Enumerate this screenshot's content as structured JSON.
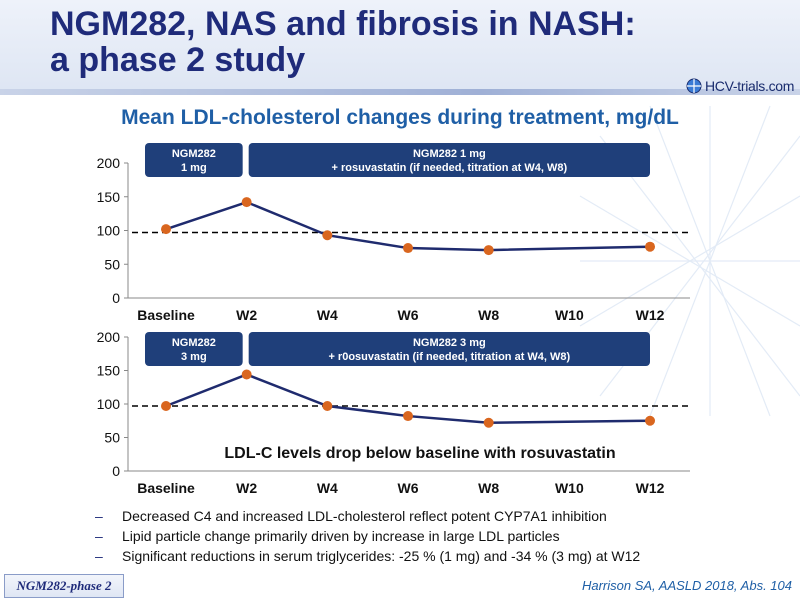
{
  "slide": {
    "title_line1": "NGM282, NAS and fibrosis in NASH:",
    "title_line2": "a phase 2 study",
    "logo_text": "HCV-trials.com",
    "subtitle": "Mean LDL-cholesterol changes during treatment, mg/dL",
    "annotation": "LDL-C levels drop below baseline with rosuvastatin",
    "bullets": [
      "Decreased C4 and increased LDL-cholesterol reflect potent CYP7A1 inhibition",
      "Lipid particle change primarily driven by increase in large LDL particles",
      "Significant reductions in serum triglycerides: -25 % (1 mg) and -34 % (3 mg) at W12"
    ],
    "footer_tag": "NGM282-phase 2",
    "citation": "Harrison SA, AASLD 2018, Abs. 104",
    "colors": {
      "line": "#1f2b6e",
      "marker": "#d9661f",
      "box": "#1f3f7a",
      "title": "#1f2b7a",
      "subtitle": "#1f5fa6"
    }
  },
  "chart_data": [
    {
      "type": "line",
      "categories": [
        "Baseline",
        "W2",
        "W4",
        "W6",
        "W8",
        "W10",
        "W12"
      ],
      "series": [
        {
          "values": [
            102,
            142,
            93,
            74,
            71,
            null,
            76
          ]
        }
      ],
      "ylim": [
        0,
        200
      ],
      "yticks": [
        0,
        50,
        100,
        150,
        200
      ],
      "reference_line": 97,
      "phase_boxes": [
        {
          "line1": "NGM282",
          "line2": "1 mg",
          "from": "Baseline",
          "to": "W2"
        },
        {
          "line1": "NGM282 1 mg",
          "line2": "+ rosuvastatin (if needed, titration at W4, W8)",
          "from": "W2",
          "to": "W12"
        }
      ]
    },
    {
      "type": "line",
      "categories": [
        "Baseline",
        "W2",
        "W4",
        "W6",
        "W8",
        "W10",
        "W12"
      ],
      "series": [
        {
          "values": [
            97,
            144,
            97,
            82,
            72,
            null,
            75
          ]
        }
      ],
      "ylim": [
        0,
        200
      ],
      "yticks": [
        0,
        50,
        100,
        150,
        200
      ],
      "reference_line": 97,
      "phase_boxes": [
        {
          "line1": "NGM282",
          "line2": "3 mg",
          "from": "Baseline",
          "to": "W2"
        },
        {
          "line1": "NGM282 3 mg",
          "line2": "+ r0osuvastatin (if needed, titration at W4, W8)",
          "from": "W2",
          "to": "W12"
        }
      ]
    }
  ]
}
